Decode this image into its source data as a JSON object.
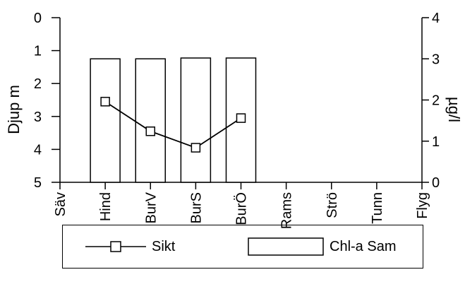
{
  "chart_data": {
    "type": "bar",
    "categories": [
      "Säv",
      "Hind",
      "BurV",
      "BurS",
      "BurÖ",
      "Rams",
      "Strö",
      "Tunn",
      "Flyg"
    ],
    "series": [
      {
        "name": "Chl-a Sam",
        "kind": "bar",
        "axis": "right",
        "values": [
          null,
          3.0,
          3.0,
          3.02,
          3.02,
          null,
          null,
          null,
          null
        ]
      },
      {
        "name": "Sikt",
        "kind": "line",
        "axis": "left",
        "marker": "square",
        "values": [
          null,
          2.55,
          3.45,
          3.95,
          3.05,
          null,
          null,
          null,
          null
        ]
      }
    ],
    "ylabel_left": "Djup  m",
    "ylim_left": [
      5,
      0
    ],
    "yticks_left": [
      "0",
      "1",
      "2",
      "3",
      "4",
      "5"
    ],
    "ylabel_right": "µg/l",
    "ylim_right": [
      0,
      4
    ],
    "yticks_right": [
      "0",
      "1",
      "2",
      "3",
      "4"
    ],
    "grid": false,
    "legend_position": "bottom",
    "colors": {
      "ink": "#000000",
      "bar_fill": "#ffffff"
    }
  },
  "legend": {
    "line_label": "Sikt",
    "bar_label": "Chl-a Sam"
  }
}
